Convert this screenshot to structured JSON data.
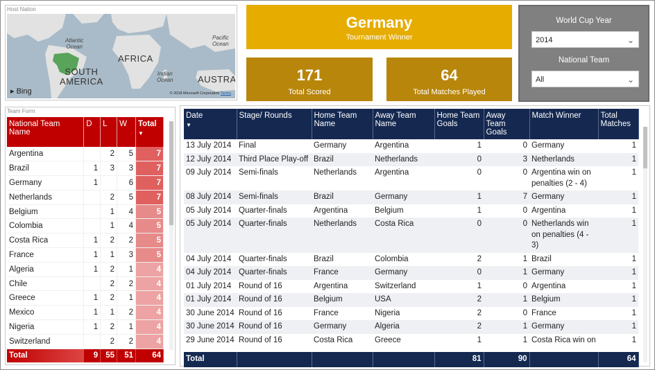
{
  "map": {
    "caption": "Host Nation",
    "labels": {
      "atlantic": "Atlantic\nOcean",
      "pacific": "Pacific\nOcean",
      "indian": "Indian\nOcean",
      "africa": "AFRICA",
      "south_america": "SOUTH\nAMERICA",
      "australia": "AUSTRAL"
    },
    "bing": "Bing",
    "copyright": "© 2018 Microsoft Corporation",
    "terms": "Terms"
  },
  "winner": {
    "name": "Germany",
    "label": "Tournament Winner"
  },
  "kpis": [
    {
      "value": "171",
      "label": "Total Scored"
    },
    {
      "value": "64",
      "label": "Total Matches Played"
    }
  ],
  "slicers": [
    {
      "title": "World Cup Year",
      "value": "2014"
    },
    {
      "title": "National Team",
      "value": "All"
    }
  ],
  "team_form": {
    "caption": "Team Form",
    "headers": [
      "National Team Name",
      "D",
      "L",
      "W",
      "Total"
    ],
    "rows": [
      [
        "Argentina",
        "",
        "2",
        "5",
        "7"
      ],
      [
        "Brazil",
        "1",
        "3",
        "3",
        "7"
      ],
      [
        "Germany",
        "1",
        "",
        "6",
        "7"
      ],
      [
        "Netherlands",
        "",
        "2",
        "5",
        "7"
      ],
      [
        "Belgium",
        "",
        "1",
        "4",
        "5"
      ],
      [
        "Colombia",
        "",
        "1",
        "4",
        "5"
      ],
      [
        "Costa Rica",
        "1",
        "2",
        "2",
        "5"
      ],
      [
        "France",
        "1",
        "1",
        "3",
        "5"
      ],
      [
        "Algeria",
        "1",
        "2",
        "1",
        "4"
      ],
      [
        "Chile",
        "",
        "2",
        "2",
        "4"
      ],
      [
        "Greece",
        "1",
        "2",
        "1",
        "4"
      ],
      [
        "Mexico",
        "1",
        "1",
        "2",
        "4"
      ],
      [
        "Nigeria",
        "1",
        "2",
        "1",
        "4"
      ],
      [
        "Switzerland",
        "",
        "2",
        "2",
        "4"
      ]
    ],
    "footer": [
      "Total",
      "9",
      "55",
      "51",
      "64"
    ]
  },
  "matches": {
    "headers": [
      "Date",
      "Stage/ Rounds",
      "Home Team Name",
      "Away Team Name",
      "Home Team Goals",
      "Away Team Goals",
      "Match Winner",
      "Total Matches"
    ],
    "rows": [
      [
        "13 July 2014",
        "Final",
        "Germany",
        "Argentina",
        "1",
        "0",
        "Germany",
        "1"
      ],
      [
        "12 July 2014",
        "Third Place Play-off",
        "Brazil",
        "Netherlands",
        "0",
        "3",
        "Netherlands",
        "1"
      ],
      [
        "09 July 2014",
        "Semi-finals",
        "Netherlands",
        "Argentina",
        "0",
        "0",
        "Argentina win on penalties (2 - 4)",
        "1"
      ],
      [
        "08 July 2014",
        "Semi-finals",
        "Brazil",
        "Germany",
        "1",
        "7",
        "Germany",
        "1"
      ],
      [
        "05 July 2014",
        "Quarter-finals",
        "Argentina",
        "Belgium",
        "1",
        "0",
        "Argentina",
        "1"
      ],
      [
        "05 July 2014",
        "Quarter-finals",
        "Netherlands",
        "Costa Rica",
        "0",
        "0",
        "Netherlands win on penalties (4 - 3)",
        "1"
      ],
      [
        "04 July 2014",
        "Quarter-finals",
        "Brazil",
        "Colombia",
        "2",
        "1",
        "Brazil",
        "1"
      ],
      [
        "04 July 2014",
        "Quarter-finals",
        "France",
        "Germany",
        "0",
        "1",
        "Germany",
        "1"
      ],
      [
        "01 July 2014",
        "Round of 16",
        "Argentina",
        "Switzerland",
        "1",
        "0",
        "Argentina",
        "1"
      ],
      [
        "01 July 2014",
        "Round of 16",
        "Belgium",
        "USA",
        "2",
        "1",
        "Belgium",
        "1"
      ],
      [
        "30 June 2014",
        "Round of 16",
        "France",
        "Nigeria",
        "2",
        "0",
        "France",
        "1"
      ],
      [
        "30 June 2014",
        "Round of 16",
        "Germany",
        "Algeria",
        "2",
        "1",
        "Germany",
        "1"
      ],
      [
        "29 June 2014",
        "Round of 16",
        "Costa Rica",
        "Greece",
        "1",
        "1",
        "Costa Rica win on",
        "1"
      ]
    ],
    "footer": [
      "Total",
      "",
      "",
      "",
      "81",
      "90",
      "",
      "64"
    ]
  }
}
